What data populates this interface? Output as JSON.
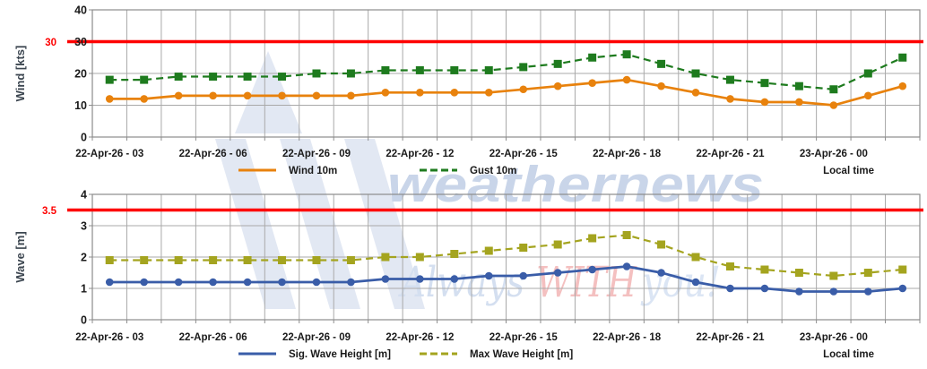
{
  "watermark": {
    "brand_text": "weathernews",
    "tagline_word1": "Always",
    "tagline_word2": "WITH",
    "tagline_word3": "you!",
    "logo_color": "#e2e8f3",
    "brand_color": "#c9d5e9",
    "tagline_blue": "#d4dff0",
    "tagline_red": "#f4c0c0",
    "tagline_lightblue": "#dbe5f4"
  },
  "colors": {
    "threshold_line": "#fe0000",
    "grid": "#a9a9a9",
    "plot_border": "#8c8c8c",
    "tick_text": "#1a1a1a",
    "axis_title_text": "#3c4650",
    "wind_line": "#e8820d",
    "gust_line": "#1e7b1e",
    "sig_wave_line": "#3a5da8",
    "max_wave_line": "#a4a41f"
  },
  "chart_data": [
    {
      "type": "line",
      "ylabel": "Wind [kts]",
      "ylim": [
        0,
        40
      ],
      "yticks": [
        0,
        10,
        20,
        30,
        40
      ],
      "grid": true,
      "legend_position": "bottom",
      "threshold": {
        "value": 30,
        "label": "30",
        "color": "#fe0000"
      },
      "x_tick_every": 3,
      "x_tick_labels": [
        "22-Apr-26 - 03",
        "22-Apr-26 - 06",
        "22-Apr-26 - 09",
        "22-Apr-26 - 12",
        "22-Apr-26 - 15",
        "22-Apr-26 - 18",
        "22-Apr-26 - 21",
        "23-Apr-26 - 00"
      ],
      "x_axis_note": "Local time",
      "series": [
        {
          "name": "Wind 10m",
          "style": "solid",
          "marker": "circle",
          "color": "#e8820d",
          "values": [
            12,
            12,
            13,
            13,
            13,
            13,
            13,
            13,
            14,
            14,
            14,
            14,
            15,
            16,
            17,
            18,
            16,
            14,
            12,
            11,
            11,
            10,
            13,
            16
          ]
        },
        {
          "name": "Gust 10m",
          "style": "dashed",
          "marker": "square",
          "color": "#1e7b1e",
          "values": [
            18,
            18,
            19,
            19,
            19,
            19,
            20,
            20,
            21,
            21,
            21,
            21,
            22,
            23,
            25,
            26,
            23,
            20,
            18,
            17,
            16,
            15,
            20,
            25
          ]
        }
      ]
    },
    {
      "type": "line",
      "ylabel": "Wave [m]",
      "ylim": [
        0,
        4
      ],
      "yticks": [
        0,
        1,
        2,
        3,
        4
      ],
      "grid": true,
      "legend_position": "bottom",
      "threshold": {
        "value": 3.5,
        "label": "3.5",
        "color": "#fe0000"
      },
      "x_tick_every": 3,
      "x_tick_labels": [
        "22-Apr-26 - 03",
        "22-Apr-26 - 06",
        "22-Apr-26 - 09",
        "22-Apr-26 - 12",
        "22-Apr-26 - 15",
        "22-Apr-26 - 18",
        "22-Apr-26 - 21",
        "23-Apr-26 - 00"
      ],
      "x_axis_note": "Local time",
      "series": [
        {
          "name": "Sig. Wave Height [m]",
          "style": "solid",
          "marker": "circle",
          "color": "#3a5da8",
          "values": [
            1.2,
            1.2,
            1.2,
            1.2,
            1.2,
            1.2,
            1.2,
            1.2,
            1.3,
            1.3,
            1.3,
            1.4,
            1.4,
            1.5,
            1.6,
            1.7,
            1.5,
            1.2,
            1.0,
            1.0,
            0.9,
            0.9,
            0.9,
            1.0
          ]
        },
        {
          "name": "Max Wave Height [m]",
          "style": "dashed",
          "marker": "square",
          "color": "#a4a41f",
          "values": [
            1.9,
            1.9,
            1.9,
            1.9,
            1.9,
            1.9,
            1.9,
            1.9,
            2.0,
            2.0,
            2.1,
            2.2,
            2.3,
            2.4,
            2.6,
            2.7,
            2.4,
            2.0,
            1.7,
            1.6,
            1.5,
            1.4,
            1.5,
            1.6
          ]
        }
      ]
    }
  ]
}
